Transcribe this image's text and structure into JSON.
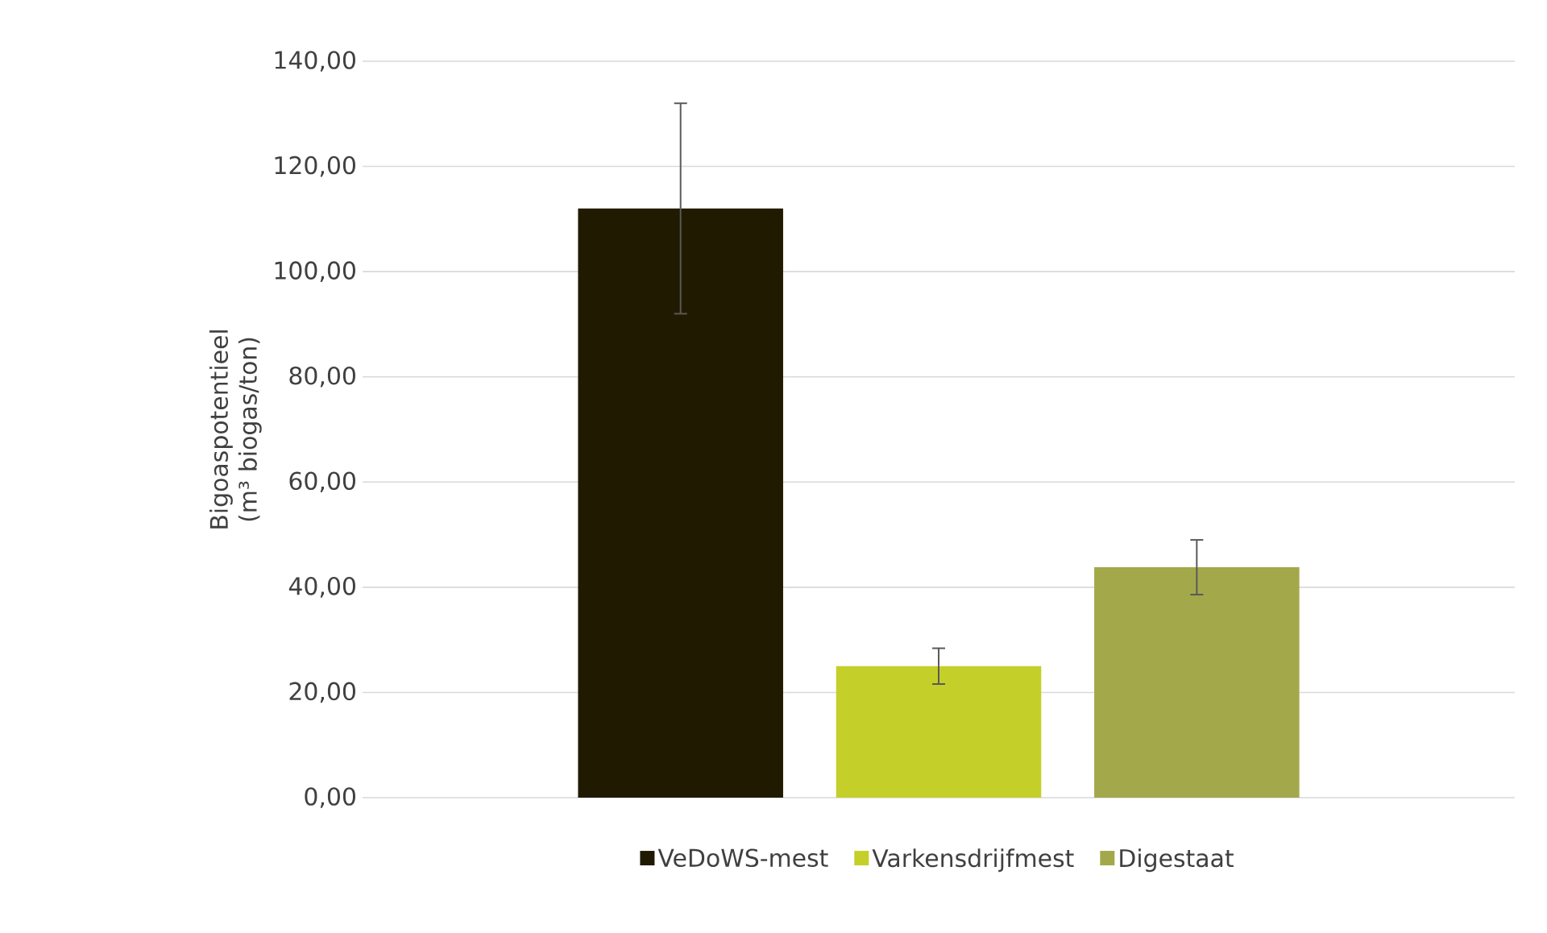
{
  "chart_data": {
    "type": "bar",
    "categories": [
      null
    ],
    "series": [
      {
        "name": "VeDoWS-mest",
        "color": "#201a00",
        "values": [
          112
        ],
        "errors": [
          20
        ]
      },
      {
        "name": "Varkensdrijfmest",
        "color": "#c5cf2a",
        "values": [
          25
        ],
        "errors": [
          3.4
        ]
      },
      {
        "name": "Digestaat",
        "color": "#a3a84a",
        "values": [
          43.8
        ],
        "errors": [
          5.2
        ]
      }
    ],
    "ylabel": "Bigoaspotentieel (m³ biogas/ton)",
    "ylim": [
      0,
      140
    ],
    "yticks": [
      {
        "value": 0,
        "label": "0,00"
      },
      {
        "value": 20,
        "label": "20,00"
      },
      {
        "value": 40,
        "label": "40,00"
      },
      {
        "value": 60,
        "label": "60,00"
      },
      {
        "value": 80,
        "label": "80,00"
      },
      {
        "value": 100,
        "label": "100,00"
      },
      {
        "value": 120,
        "label": "120,00"
      },
      {
        "value": 140,
        "label": "140,00"
      }
    ],
    "grid": "y",
    "legend": "bottom"
  }
}
